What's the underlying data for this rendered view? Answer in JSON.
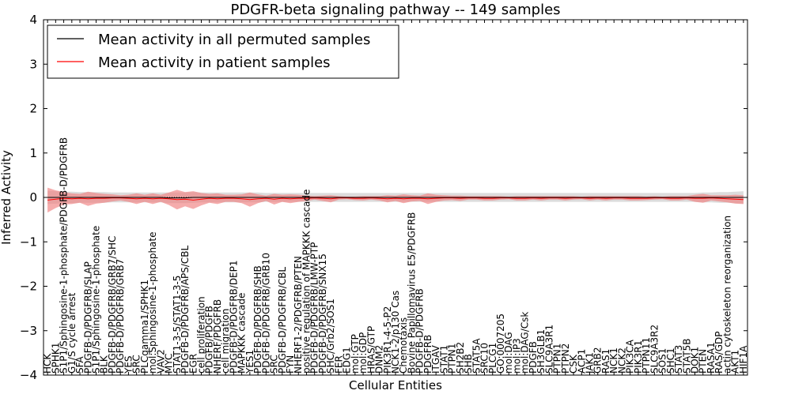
{
  "chart_data": {
    "type": "line",
    "title": "PDGFR-beta signaling pathway -- 149 samples",
    "xlabel": "Cellular Entities",
    "ylabel": "Inferred Activity",
    "ylim": [
      -4,
      4
    ],
    "yticks": [
      -4,
      -3,
      -2,
      -1,
      0,
      1,
      2,
      3,
      4
    ],
    "ytick_labels": [
      "−4",
      "−3",
      "−2",
      "−1",
      "0",
      "1",
      "2",
      "3",
      "4"
    ],
    "legend": {
      "placement": "top-left",
      "entries": [
        {
          "label": "Mean activity in all permuted samples",
          "color": "#000000"
        },
        {
          "label": "Mean activity in patient samples",
          "color": "#ff0000"
        }
      ]
    },
    "colors": {
      "permuted_line": "#000000",
      "permuted_band": "#bfbfbf",
      "patient_line": "#ff0000",
      "patient_band": "#f08080",
      "zero_line": "#000000"
    },
    "entities": [
      "HCK",
      "SPHK1",
      "S1P1/Sphingosine-1-phosphate/PDGFB-D/PDGFRB",
      "G1/S cycle arrest",
      "SFA",
      "PDGFB-D/PDGFRB/SLAP",
      "S1P1/Sphingosine-1-phosphate",
      "BLK",
      "PDGFB-D/PDGFRB/GRB7/SHC",
      "PDGFB-D/PDGFRB/GRB7",
      "YES",
      "SRC",
      "PLCgamma1/SPHK1",
      "mol:Sphingosine-1-phosphate",
      "VAV2",
      "MYC",
      "STAT1-3-5/STAT1-3-5",
      "PDGFB-D/PDGFRB/APS/CBL",
      "EGR",
      "cell proliferation",
      "PDGFB/PDGFB",
      "NHERF/PDGFRB",
      "cell migration",
      "PDGFB-D/PDGFRB/DEP1",
      "MAPKKK cascade",
      "YES1",
      "PDGFB-D/PDGFRB/SHB",
      "PDGFB-D/PDGFRB/GRB10",
      "SRC",
      "PDGFB-D/PDGFRB/CBL",
      "FYN",
      "NHERF1-2/PDGFRB/PTEN",
      "positive regulation of MAPKKK cascade",
      "PDGFB-D/PDGFRB/LMW-PTP",
      "PDGFB-D/PDGFRB/SNX15",
      "SHC/Grb2/SOS1",
      "FER",
      "EDG1",
      "mol:GTP",
      "mol:GDP",
      "HRAS/GTP",
      "DNM2",
      "PIK3R1-4-5-P2",
      "NCK1-2/p130 Cas",
      "Chemotaxis",
      "Bovine Papillomavirus E5/PDGFRB",
      "PDGFB-D/PDGFRB",
      "PDGFRB",
      "ITGAV",
      "STAT1",
      "PTPN1",
      "SH2B2",
      "SHB",
      "STAT5A",
      "SRC10",
      "PLCG1",
      "GO:0007205",
      "mol:DAG",
      "mol:IP3",
      "mol:DAG/Csk",
      "PDGFB",
      "SH3GLB1",
      "SLC9A3R1",
      "PTPN1",
      "PTPN2",
      "CSK",
      "ACP1",
      "JAK1",
      "GRB2",
      "RAS1",
      "NCK1",
      "NCK2",
      "PIK3CA",
      "PIK3R1",
      "PTPN11",
      "SLC9A3R2",
      "SOS1",
      "SHC1",
      "STAT3",
      "STAT5B",
      "DOK1",
      "PTEN",
      "RASA1",
      "RAS/GDP",
      "actin cytoskeleton reorganization",
      "AKT1",
      "HIF1A"
    ],
    "patient_mean": [
      -0.06,
      -0.04,
      -0.02,
      -0.03,
      -0.02,
      -0.03,
      -0.02,
      -0.02,
      -0.01,
      -0.01,
      -0.02,
      -0.03,
      -0.02,
      -0.03,
      -0.02,
      -0.03,
      -0.05,
      -0.04,
      -0.06,
      -0.04,
      -0.02,
      -0.03,
      -0.02,
      -0.02,
      -0.03,
      -0.05,
      -0.03,
      -0.02,
      -0.04,
      -0.02,
      -0.03,
      -0.02,
      -0.02,
      -0.01,
      -0.02,
      -0.03,
      -0.01,
      -0.01,
      -0.02,
      -0.02,
      -0.01,
      -0.02,
      -0.03,
      -0.02,
      -0.03,
      -0.02,
      -0.02,
      -0.03,
      -0.02,
      -0.01,
      -0.01,
      -0.02,
      -0.01,
      -0.01,
      -0.02,
      -0.02,
      -0.01,
      -0.01,
      -0.02,
      -0.02,
      -0.01,
      -0.02,
      -0.01,
      -0.01,
      -0.02,
      -0.01,
      -0.01,
      -0.02,
      -0.01,
      -0.02,
      -0.01,
      -0.01,
      -0.02,
      -0.02,
      -0.02,
      -0.01,
      -0.01,
      -0.02,
      -0.02,
      -0.01,
      -0.02,
      -0.02,
      -0.01,
      -0.02,
      -0.03,
      -0.04,
      -0.05
    ],
    "patient_band": [
      0.28,
      0.2,
      0.14,
      0.12,
      0.1,
      0.16,
      0.12,
      0.1,
      0.08,
      0.06,
      0.08,
      0.12,
      0.08,
      0.12,
      0.08,
      0.14,
      0.22,
      0.16,
      0.2,
      0.14,
      0.1,
      0.12,
      0.08,
      0.08,
      0.1,
      0.16,
      0.1,
      0.06,
      0.12,
      0.08,
      0.1,
      0.08,
      0.06,
      0.04,
      0.06,
      0.08,
      0.04,
      0.03,
      0.04,
      0.05,
      0.04,
      0.05,
      0.08,
      0.06,
      0.1,
      0.07,
      0.06,
      0.12,
      0.08,
      0.06,
      0.05,
      0.06,
      0.04,
      0.04,
      0.05,
      0.05,
      0.04,
      0.03,
      0.05,
      0.05,
      0.04,
      0.05,
      0.04,
      0.04,
      0.05,
      0.04,
      0.03,
      0.05,
      0.04,
      0.05,
      0.04,
      0.04,
      0.05,
      0.05,
      0.04,
      0.04,
      0.03,
      0.05,
      0.05,
      0.04,
      0.08,
      0.1,
      0.06,
      0.07,
      0.08,
      0.1,
      0.1
    ],
    "permuted_mean": [
      0.0,
      0.0,
      0.0,
      0.0,
      0.0,
      0.0,
      0.0,
      0.0,
      0.0,
      0.0,
      0.0,
      0.0,
      0.0,
      0.0,
      0.0,
      -0.01,
      -0.01,
      -0.01,
      0.0,
      0.0,
      0.0,
      0.0,
      0.0,
      0.0,
      0.0,
      0.0,
      0.0,
      0.0,
      0.0,
      0.0,
      0.0,
      0.0,
      0.0,
      0.0,
      0.0,
      0.0,
      0.0,
      0.0,
      0.0,
      0.0,
      0.0,
      0.0,
      0.0,
      0.0,
      0.0,
      0.0,
      0.0,
      0.0,
      0.0,
      0.0,
      0.0,
      0.0,
      0.0,
      0.0,
      0.0,
      0.0,
      0.0,
      0.0,
      0.0,
      0.0,
      0.0,
      0.0,
      0.0,
      0.0,
      0.0,
      0.0,
      0.0,
      0.0,
      0.0,
      0.0,
      0.0,
      0.0,
      0.0,
      0.0,
      0.0,
      0.0,
      0.0,
      0.0,
      0.0,
      0.0,
      0.0,
      0.0,
      0.0,
      0.0,
      0.0,
      0.0,
      0.0
    ],
    "permuted_band": [
      0.15,
      0.14,
      0.13,
      0.13,
      0.12,
      0.12,
      0.12,
      0.12,
      0.11,
      0.11,
      0.11,
      0.11,
      0.11,
      0.11,
      0.11,
      0.12,
      0.12,
      0.12,
      0.12,
      0.11,
      0.11,
      0.11,
      0.11,
      0.11,
      0.11,
      0.11,
      0.11,
      0.1,
      0.1,
      0.1,
      0.1,
      0.1,
      0.1,
      0.1,
      0.1,
      0.1,
      0.1,
      0.1,
      0.1,
      0.1,
      0.1,
      0.1,
      0.1,
      0.1,
      0.1,
      0.1,
      0.1,
      0.1,
      0.1,
      0.1,
      0.1,
      0.1,
      0.1,
      0.1,
      0.1,
      0.1,
      0.1,
      0.1,
      0.1,
      0.1,
      0.1,
      0.1,
      0.1,
      0.1,
      0.1,
      0.1,
      0.1,
      0.1,
      0.1,
      0.1,
      0.1,
      0.1,
      0.1,
      0.1,
      0.1,
      0.1,
      0.1,
      0.1,
      0.1,
      0.1,
      0.1,
      0.11,
      0.11,
      0.12,
      0.12,
      0.13,
      0.14
    ]
  }
}
